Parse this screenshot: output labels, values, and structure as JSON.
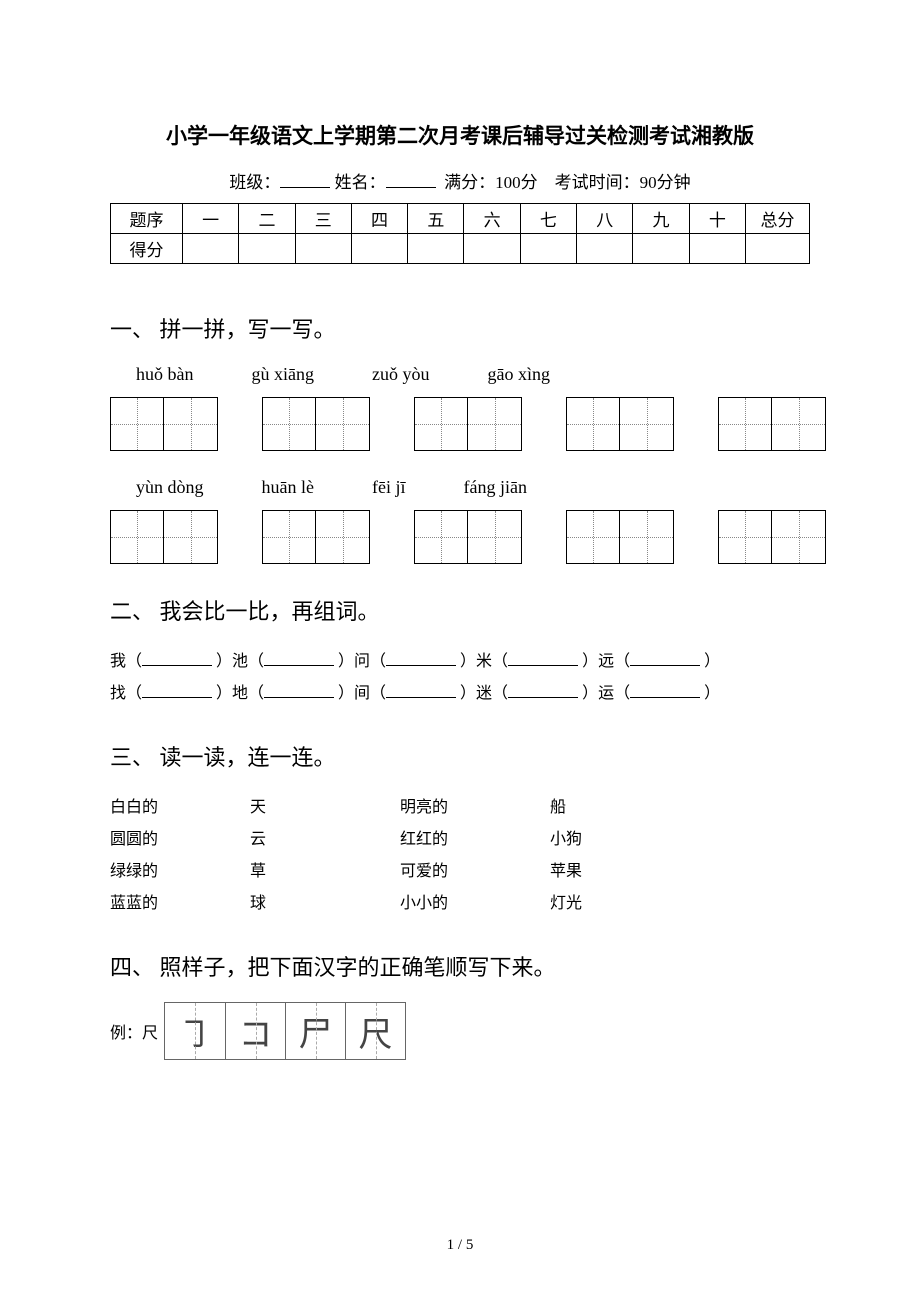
{
  "title": "小学一年级语文上学期第二次月考课后辅导过关检测考试湘教版",
  "meta": {
    "class_label": "班级：",
    "name_label": "姓名：",
    "full_score": "满分：100分",
    "time": "考试时间：90分钟"
  },
  "score_table": {
    "row1_label": "题序",
    "row2_label": "得分",
    "cols": [
      "一",
      "二",
      "三",
      "四",
      "五",
      "六",
      "七",
      "八",
      "九",
      "十"
    ],
    "total_label": "总分"
  },
  "sec1": {
    "heading": "一、 拼一拼，写一写。",
    "row1_pinyin": [
      "huǒ bàn",
      "gù xiāng",
      "zuǒ yòu",
      "gāo xìng"
    ],
    "row2_pinyin": [
      "yùn dòng",
      "huān lè",
      "fēi jī",
      "fáng jiān"
    ]
  },
  "sec2": {
    "heading": "二、 我会比一比，再组词。",
    "line1": [
      "我（",
      "）池（",
      "）问（",
      "）米（",
      "）远（",
      "）"
    ],
    "line2": [
      "找（",
      "）地（",
      "）间（",
      "）迷（",
      "）运（",
      "）"
    ]
  },
  "sec3": {
    "heading": "三、 读一读，连一连。",
    "rows": [
      [
        "白白的",
        "天",
        "明亮的",
        "船"
      ],
      [
        "圆圆的",
        "云",
        "红红的",
        "小狗"
      ],
      [
        "绿绿的",
        "草",
        "可爱的",
        "苹果"
      ],
      [
        "蓝蓝的",
        "球",
        "小小的",
        "灯光"
      ]
    ]
  },
  "sec4": {
    "heading": "四、 照样子，把下面汉字的正确笔顺写下来。",
    "example_label": "例：尺",
    "strokes": [
      "㇆",
      "コ",
      "尸",
      "尺"
    ]
  },
  "page_number": "1 / 5"
}
